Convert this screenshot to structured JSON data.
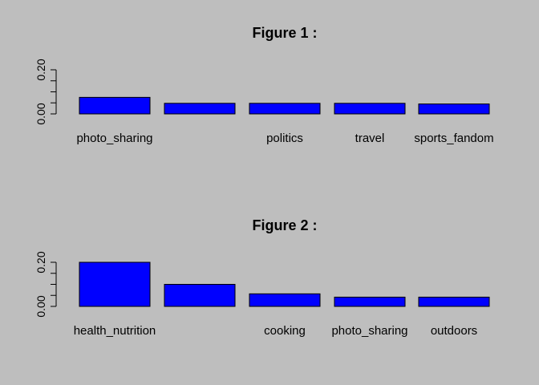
{
  "chart_data": [
    {
      "type": "bar",
      "title": "Figure 1 :",
      "categories": [
        "photo_sharing",
        "",
        "politics",
        "travel",
        "sports_fandom"
      ],
      "values": [
        0.075,
        0.048,
        0.048,
        0.048,
        0.045
      ],
      "ylim": [
        0,
        0.2
      ],
      "yticks": [
        "0.00",
        "0.20"
      ],
      "bar_color": "#0000ff",
      "xlabel": "",
      "ylabel": ""
    },
    {
      "type": "bar",
      "title": "Figure 2 :",
      "categories": [
        "health_nutrition",
        "",
        "cooking",
        "photo_sharing",
        "outdoors"
      ],
      "values": [
        0.2,
        0.1,
        0.057,
        0.042,
        0.042
      ],
      "ylim": [
        0,
        0.2
      ],
      "yticks": [
        "0.00",
        "0.20"
      ],
      "bar_color": "#0000ff",
      "xlabel": "",
      "ylabel": ""
    }
  ]
}
